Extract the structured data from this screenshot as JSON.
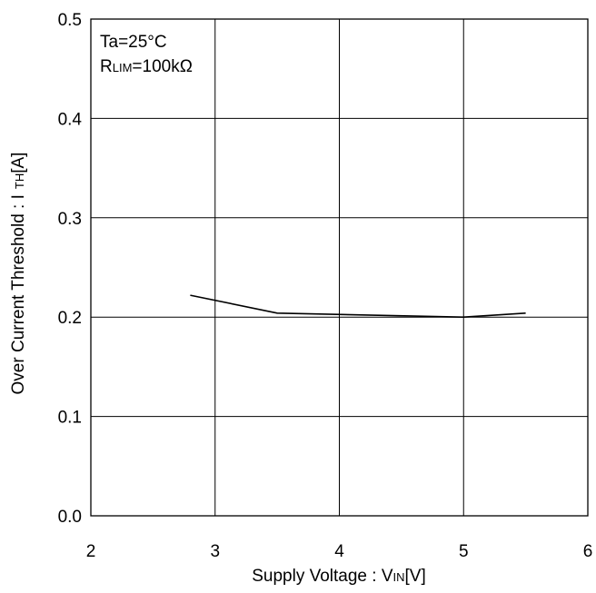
{
  "chart_data": {
    "type": "line",
    "title": "",
    "xlabel": {
      "main": "Supply Voltage : V",
      "sub": "IN",
      "unit": "[V]"
    },
    "ylabel": {
      "main": "Over Current Threshold : I",
      "sub": "TH",
      "unit": "[A]"
    },
    "xlim": [
      2,
      6
    ],
    "ylim": [
      0.0,
      0.5
    ],
    "x_ticks": [
      "2",
      "3",
      "4",
      "5",
      "6"
    ],
    "y_ticks": [
      "0.0",
      "0.1",
      "0.2",
      "0.3",
      "0.4",
      "0.5"
    ],
    "grid": true,
    "annotations": {
      "temp": "Ta=25°C",
      "rlim_main": "R",
      "rlim_sub": "LIM",
      "rlim_value": "=100kΩ"
    },
    "series": [
      {
        "color": "#000000",
        "x": [
          2.8,
          3.5,
          5.0,
          5.5
        ],
        "y": [
          0.222,
          0.204,
          0.2,
          0.204
        ]
      }
    ]
  }
}
